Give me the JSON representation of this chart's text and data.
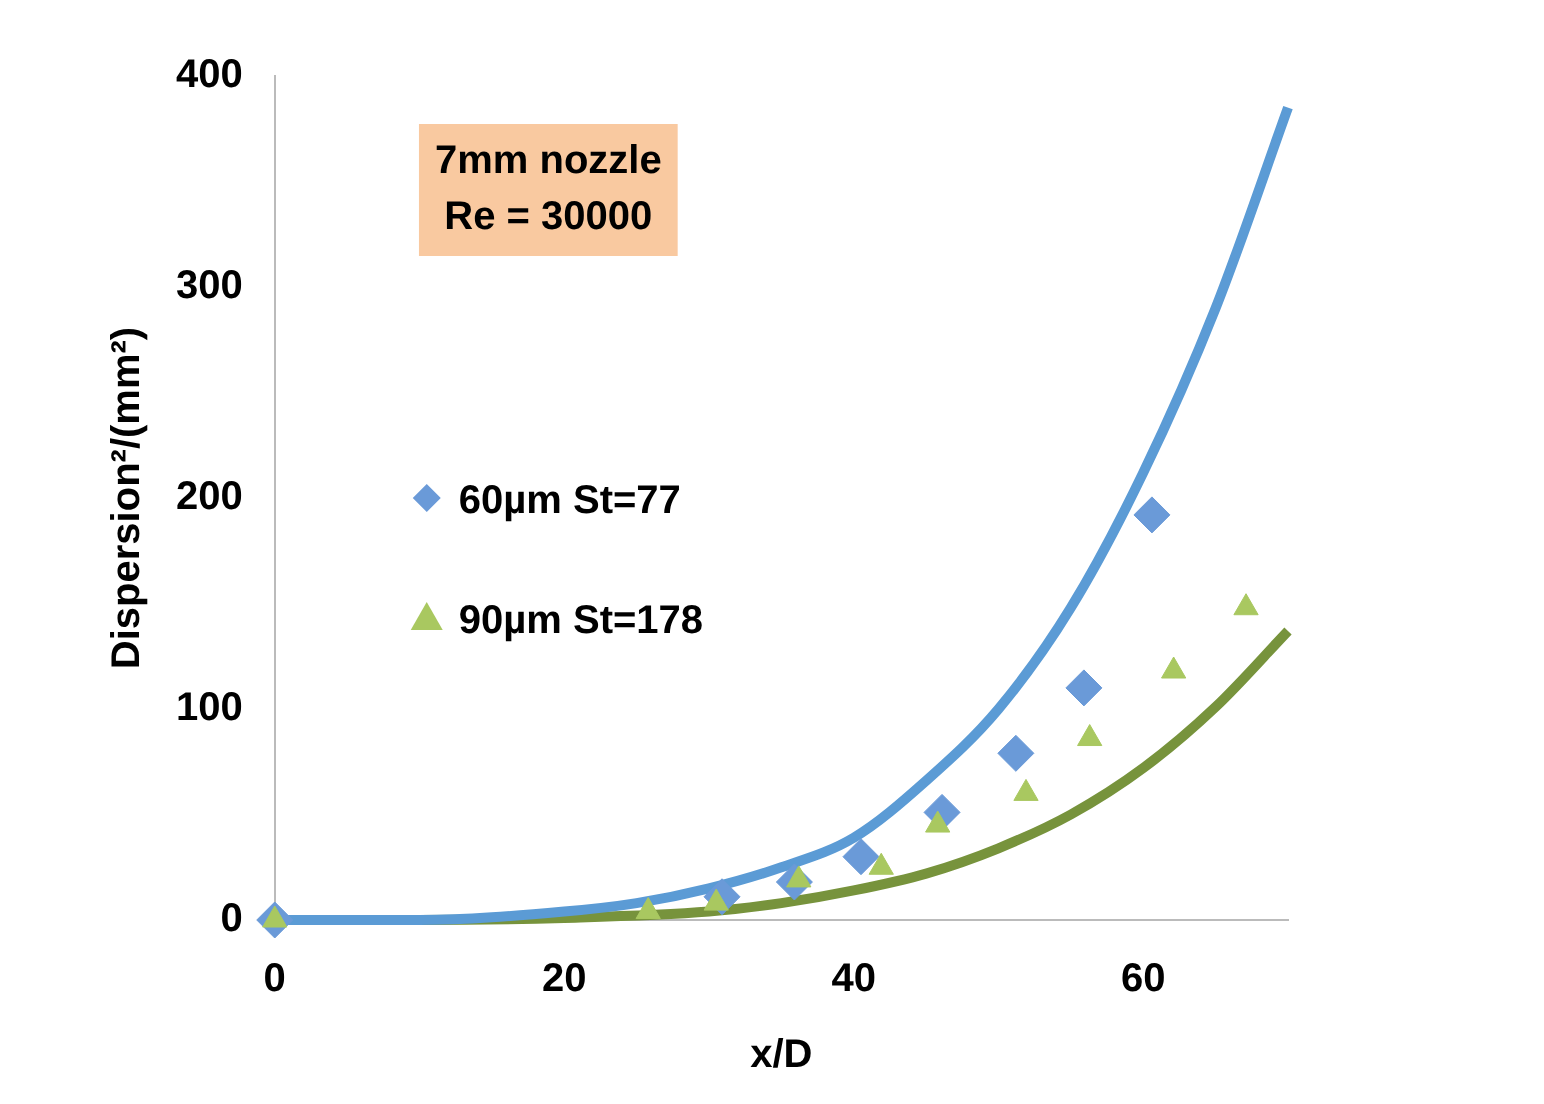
{
  "chart_data": {
    "type": "scatter",
    "xlabel": "x/D",
    "ylabel": "Dispersion²/(mm²)",
    "annotations": [
      "7mm nozzle\nRe = 30000"
    ],
    "xlim": [
      0,
      70
    ],
    "xticks": [
      0,
      20,
      40,
      60
    ],
    "ylim": [
      0,
      400
    ],
    "yticks": [
      0,
      100,
      200,
      300,
      400
    ],
    "grid": false,
    "legend": "left",
    "series": [
      {
        "type": "line",
        "color": "#5b9bd5",
        "marker": "none",
        "x": [
          0,
          10,
          20,
          25,
          30,
          35,
          40,
          45,
          50,
          55,
          60,
          65,
          70
        ],
        "values": [
          0,
          0,
          4,
          8,
          15,
          25,
          39,
          66,
          100,
          148,
          212,
          290,
          385
        ]
      },
      {
        "type": "line",
        "color": "#77933c",
        "marker": "none",
        "x": [
          0,
          10,
          20,
          30,
          35,
          40,
          45,
          50,
          55,
          60,
          65,
          70
        ],
        "values": [
          0,
          0,
          1,
          4,
          8,
          14,
          22,
          34,
          50,
          72,
          101,
          137
        ]
      },
      {
        "type": "scatter",
        "name": "60µm St=77",
        "color": "#6a9ad8",
        "marker": "diamond",
        "x": [
          0,
          30.9,
          35.9,
          40.5,
          46.1,
          51.2,
          55.9,
          60.6
        ],
        "values": [
          0,
          11,
          18,
          30,
          51,
          79,
          110,
          192
        ]
      },
      {
        "type": "scatter",
        "name": "90µm St=178",
        "color": "#a9c860",
        "marker": "triangle",
        "x": [
          0,
          25.8,
          30.5,
          36.2,
          41.9,
          45.8,
          51.9,
          56.3,
          62.1,
          67.1
        ],
        "values": [
          0,
          4,
          8,
          19,
          25,
          45,
          60,
          86,
          118,
          148
        ]
      }
    ]
  }
}
